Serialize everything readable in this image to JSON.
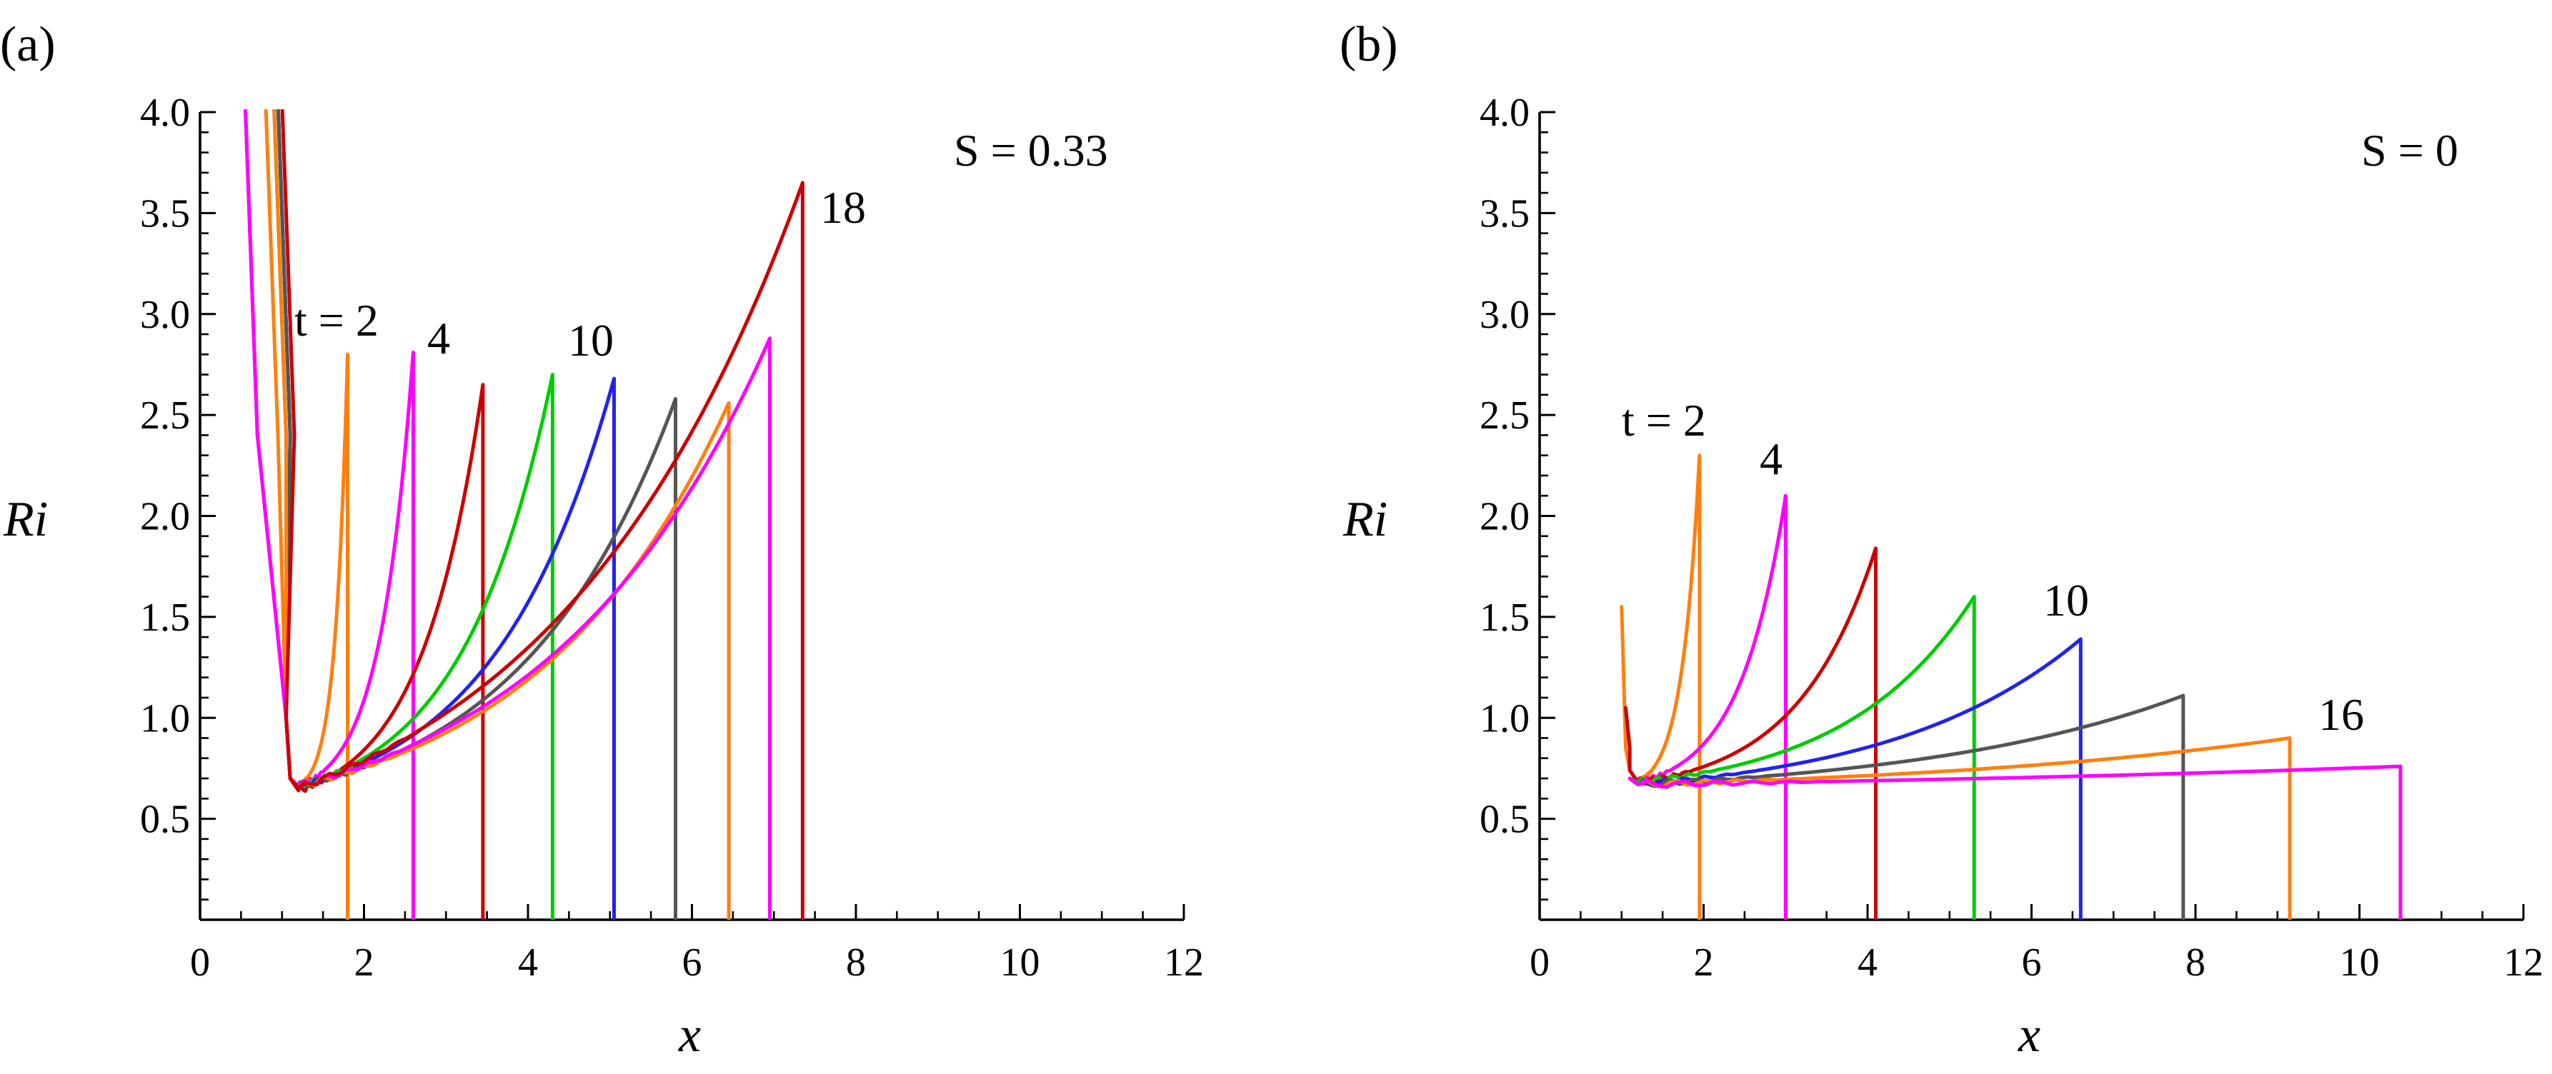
{
  "chart_data": [
    {
      "type": "line",
      "panel_label": "(a)",
      "title": "",
      "xlabel": "x",
      "ylabel": "Ri",
      "xlim": [
        0,
        12
      ],
      "ylim": [
        0,
        4.0
      ],
      "xticks": [
        "0",
        "2",
        "4",
        "6",
        "8",
        "10",
        "12"
      ],
      "yticks": [
        "0.5",
        "1.0",
        "1.5",
        "2.0",
        "2.5",
        "3.0",
        "3.5",
        "4.0"
      ],
      "annotations": {
        "param": "S = 0.33",
        "first_curve": "t = 2",
        "second_curve": "4",
        "mid_curve": "10",
        "last_curve": "18"
      },
      "series": [
        {
          "color": "#ff7f0e",
          "x_front": 1.8,
          "peak": 2.8,
          "base": 0.66,
          "start": 1.0,
          "k": 4.0,
          "left_spike": 4.0,
          "left_x": 0.8
        },
        {
          "color": "#ff00ff",
          "x_front": 2.6,
          "peak": 2.81,
          "base": 0.66,
          "start": 1.0,
          "k": 3.5,
          "left_spike": 4.0,
          "left_x": 0.55
        },
        {
          "color": "#cc0000",
          "x_front": 3.45,
          "peak": 2.65,
          "base": 0.64,
          "start": 1.0,
          "k": 3.0,
          "left_spike": 4.0,
          "left_x": 0.95
        },
        {
          "color": "#00cc00",
          "x_front": 4.3,
          "peak": 2.7,
          "base": 0.66,
          "start": 1.0,
          "k": 2.8,
          "left_spike": 4.0,
          "left_x": 0.9
        },
        {
          "color": "#2222ee",
          "x_front": 5.05,
          "peak": 2.68,
          "base": 0.66,
          "start": 1.0,
          "k": 2.6,
          "left_spike": 4.0,
          "left_x": 0.95
        },
        {
          "color": "#555555",
          "x_front": 5.8,
          "peak": 2.58,
          "base": 0.66,
          "start": 1.0,
          "k": 2.4,
          "left_spike": 4.0,
          "left_x": 0.95
        },
        {
          "color": "#ff7f0e",
          "x_front": 6.45,
          "peak": 2.56,
          "base": 0.66,
          "start": 1.0,
          "k": 2.2,
          "left_spike": 4.0,
          "left_x": 0.9
        },
        {
          "color": "#ff00ff",
          "x_front": 6.95,
          "peak": 2.88,
          "base": 0.66,
          "start": 1.0,
          "k": 2.1,
          "left_spike": 4.0,
          "left_x": 0.55
        },
        {
          "color": "#cc0000",
          "x_front": 7.35,
          "peak": 3.65,
          "base": 0.65,
          "start": 1.0,
          "k": 2.0,
          "left_spike": 4.0,
          "left_x": 1.0
        }
      ]
    },
    {
      "type": "line",
      "panel_label": "(b)",
      "title": "",
      "xlabel": "x",
      "ylabel": "Ri",
      "xlim": [
        0,
        12
      ],
      "ylim": [
        0,
        4.0
      ],
      "xticks": [
        "0",
        "2",
        "4",
        "6",
        "8",
        "10",
        "12"
      ],
      "yticks": [
        "0.5",
        "1.0",
        "1.5",
        "2.0",
        "2.5",
        "3.0",
        "3.5",
        "4.0"
      ],
      "annotations": {
        "param": "S = 0",
        "first_curve": "t = 2",
        "second_curve": "4",
        "mid_curve": "10",
        "last_curve": "16"
      },
      "series": [
        {
          "color": "#ff7f0e",
          "x_front": 1.95,
          "peak": 2.3,
          "base": 0.68,
          "start": 1.0,
          "k": 3.5,
          "left_spike": 1.55,
          "left_x": 1.0
        },
        {
          "color": "#ff00ff",
          "x_front": 3.0,
          "peak": 2.1,
          "base": 0.68,
          "start": 1.0,
          "k": 3.2,
          "left_spike": 0.0,
          "left_x": 1.0
        },
        {
          "color": "#cc0000",
          "x_front": 4.1,
          "peak": 1.84,
          "base": 0.68,
          "start": 1.0,
          "k": 3.0,
          "left_spike": 1.05,
          "left_x": 1.05
        },
        {
          "color": "#00cc00",
          "x_front": 5.3,
          "peak": 1.6,
          "base": 0.68,
          "start": 1.0,
          "k": 2.6,
          "left_spike": 0.0,
          "left_x": 1.0
        },
        {
          "color": "#2222ee",
          "x_front": 6.6,
          "peak": 1.39,
          "base": 0.67,
          "start": 1.0,
          "k": 2.3,
          "left_spike": 0.0,
          "left_x": 1.0
        },
        {
          "color": "#555555",
          "x_front": 7.85,
          "peak": 1.11,
          "base": 0.67,
          "start": 1.0,
          "k": 2.0,
          "left_spike": 0.0,
          "left_x": 1.0
        },
        {
          "color": "#ff7f0e",
          "x_front": 9.15,
          "peak": 0.9,
          "base": 0.67,
          "start": 1.0,
          "k": 1.6,
          "left_spike": 0.0,
          "left_x": 1.0
        },
        {
          "color": "#ff00ff",
          "x_front": 10.5,
          "peak": 0.76,
          "base": 0.67,
          "start": 1.0,
          "k": 1.0,
          "left_spike": 0.0,
          "left_x": 1.0
        }
      ]
    }
  ]
}
